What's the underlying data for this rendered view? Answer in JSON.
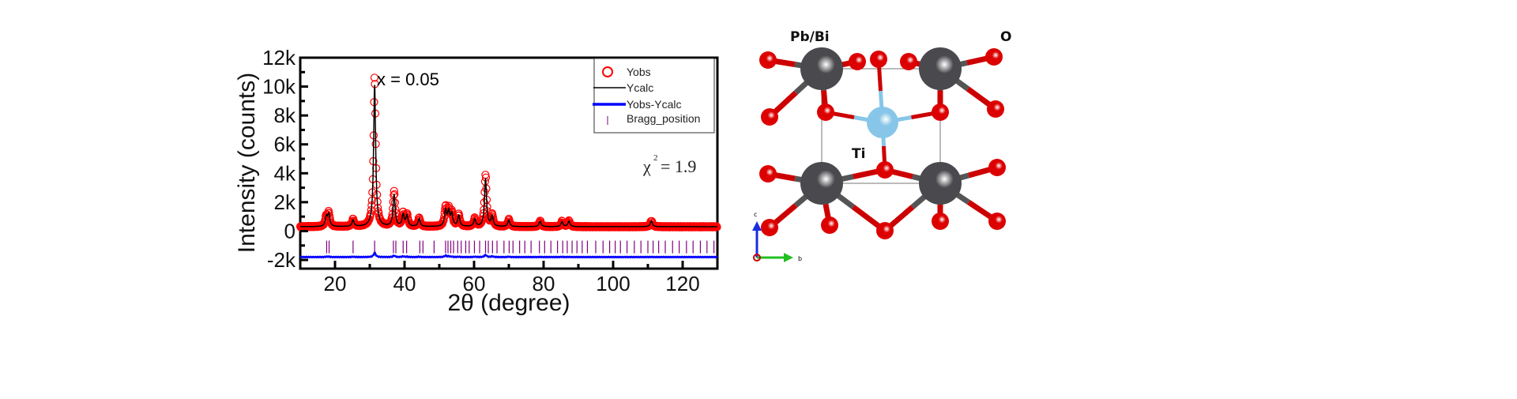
{
  "chart_data": {
    "type": "line",
    "title": "",
    "xlabel": "2θ (degree)",
    "ylabel": "Intensity (counts)",
    "xlim": [
      10,
      130
    ],
    "ylim": [
      -2600,
      12000
    ],
    "x_ticks": [
      20,
      40,
      60,
      80,
      100,
      120
    ],
    "x_tick_labels": [
      "20",
      "40",
      "60",
      "80",
      "100",
      "120"
    ],
    "y_ticks": [
      -2000,
      0,
      2000,
      4000,
      6000,
      8000,
      10000,
      12000
    ],
    "y_tick_labels": [
      "-2k",
      "0",
      "2k",
      "4k",
      "6k",
      "8k",
      "10k",
      "12k"
    ],
    "annotation": "x = 0.05",
    "chi_square": {
      "symbol": "χ",
      "power": "2",
      "value": "= 1.9"
    },
    "legend": {
      "placement": "top-right",
      "entries": [
        "Yobs",
        "Ycalc",
        "Yobs-Ycalc",
        "Bragg_position"
      ]
    },
    "colors": {
      "yobs": "#ff0000",
      "ycalc": "#000000",
      "diff": "#0000ff",
      "bragg": "#800080"
    },
    "background_counts": 300,
    "peaks": [
      {
        "two_theta": 17.5,
        "obs": 700,
        "calc": 650
      },
      {
        "two_theta": 18.2,
        "obs": 900,
        "calc": 850
      },
      {
        "two_theta": 25.2,
        "obs": 500,
        "calc": 450
      },
      {
        "two_theta": 31.4,
        "obs": 10400,
        "calc": 9800
      },
      {
        "two_theta": 37.0,
        "obs": 2400,
        "calc": 2200
      },
      {
        "two_theta": 39.6,
        "obs": 900,
        "calc": 800
      },
      {
        "two_theta": 40.7,
        "obs": 800,
        "calc": 750
      },
      {
        "two_theta": 44.2,
        "obs": 600,
        "calc": 550
      },
      {
        "two_theta": 51.8,
        "obs": 1300,
        "calc": 1100
      },
      {
        "two_theta": 52.7,
        "obs": 1100,
        "calc": 1000
      },
      {
        "two_theta": 53.6,
        "obs": 900,
        "calc": 850
      },
      {
        "two_theta": 55.6,
        "obs": 800,
        "calc": 750
      },
      {
        "two_theta": 60.2,
        "obs": 550,
        "calc": 500
      },
      {
        "two_theta": 63.3,
        "obs": 3600,
        "calc": 3300
      },
      {
        "two_theta": 65.2,
        "obs": 800,
        "calc": 700
      },
      {
        "two_theta": 70.0,
        "obs": 500,
        "calc": 450
      },
      {
        "two_theta": 79.0,
        "obs": 400,
        "calc": 380
      },
      {
        "two_theta": 85.3,
        "obs": 380,
        "calc": 350
      },
      {
        "two_theta": 87.3,
        "obs": 400,
        "calc": 380
      },
      {
        "two_theta": 101.0,
        "obs": 300,
        "calc": 280
      },
      {
        "two_theta": 111.0,
        "obs": 420,
        "calc": 400
      }
    ],
    "difference_offset": -1800,
    "bragg_level": -1100,
    "bragg_positions": [
      17.6,
      18.3,
      25.2,
      31.4,
      36.8,
      37.5,
      39.6,
      40.6,
      44.4,
      45.3,
      48.5,
      51.8,
      52.5,
      53.3,
      54.1,
      55.3,
      56.3,
      57.6,
      58.6,
      60.1,
      61.6,
      63.3,
      64.1,
      65.3,
      66.6,
      68.6,
      70.1,
      71.2,
      73.1,
      74.6,
      76.4,
      78.8,
      80.3,
      82.1,
      84.0,
      85.5,
      86.8,
      88.2,
      89.6,
      91.1,
      92.6,
      95.0,
      97.1,
      99.0,
      100.6,
      102.1,
      104.0,
      106.1,
      108.0,
      110.0,
      111.5,
      113.1,
      115.0,
      117.1,
      119.0,
      121.1,
      123.0,
      125.1,
      127.0,
      129.0
    ]
  },
  "structure": {
    "labels": {
      "pb_bi": "Pb/Bi",
      "o": "O",
      "ti": "Ti"
    },
    "axes": {
      "c": "c",
      "b": "b"
    },
    "colors": {
      "pb_bi": "#4a4a4e",
      "o": "#dd0000",
      "ti": "#87c6e8"
    }
  }
}
